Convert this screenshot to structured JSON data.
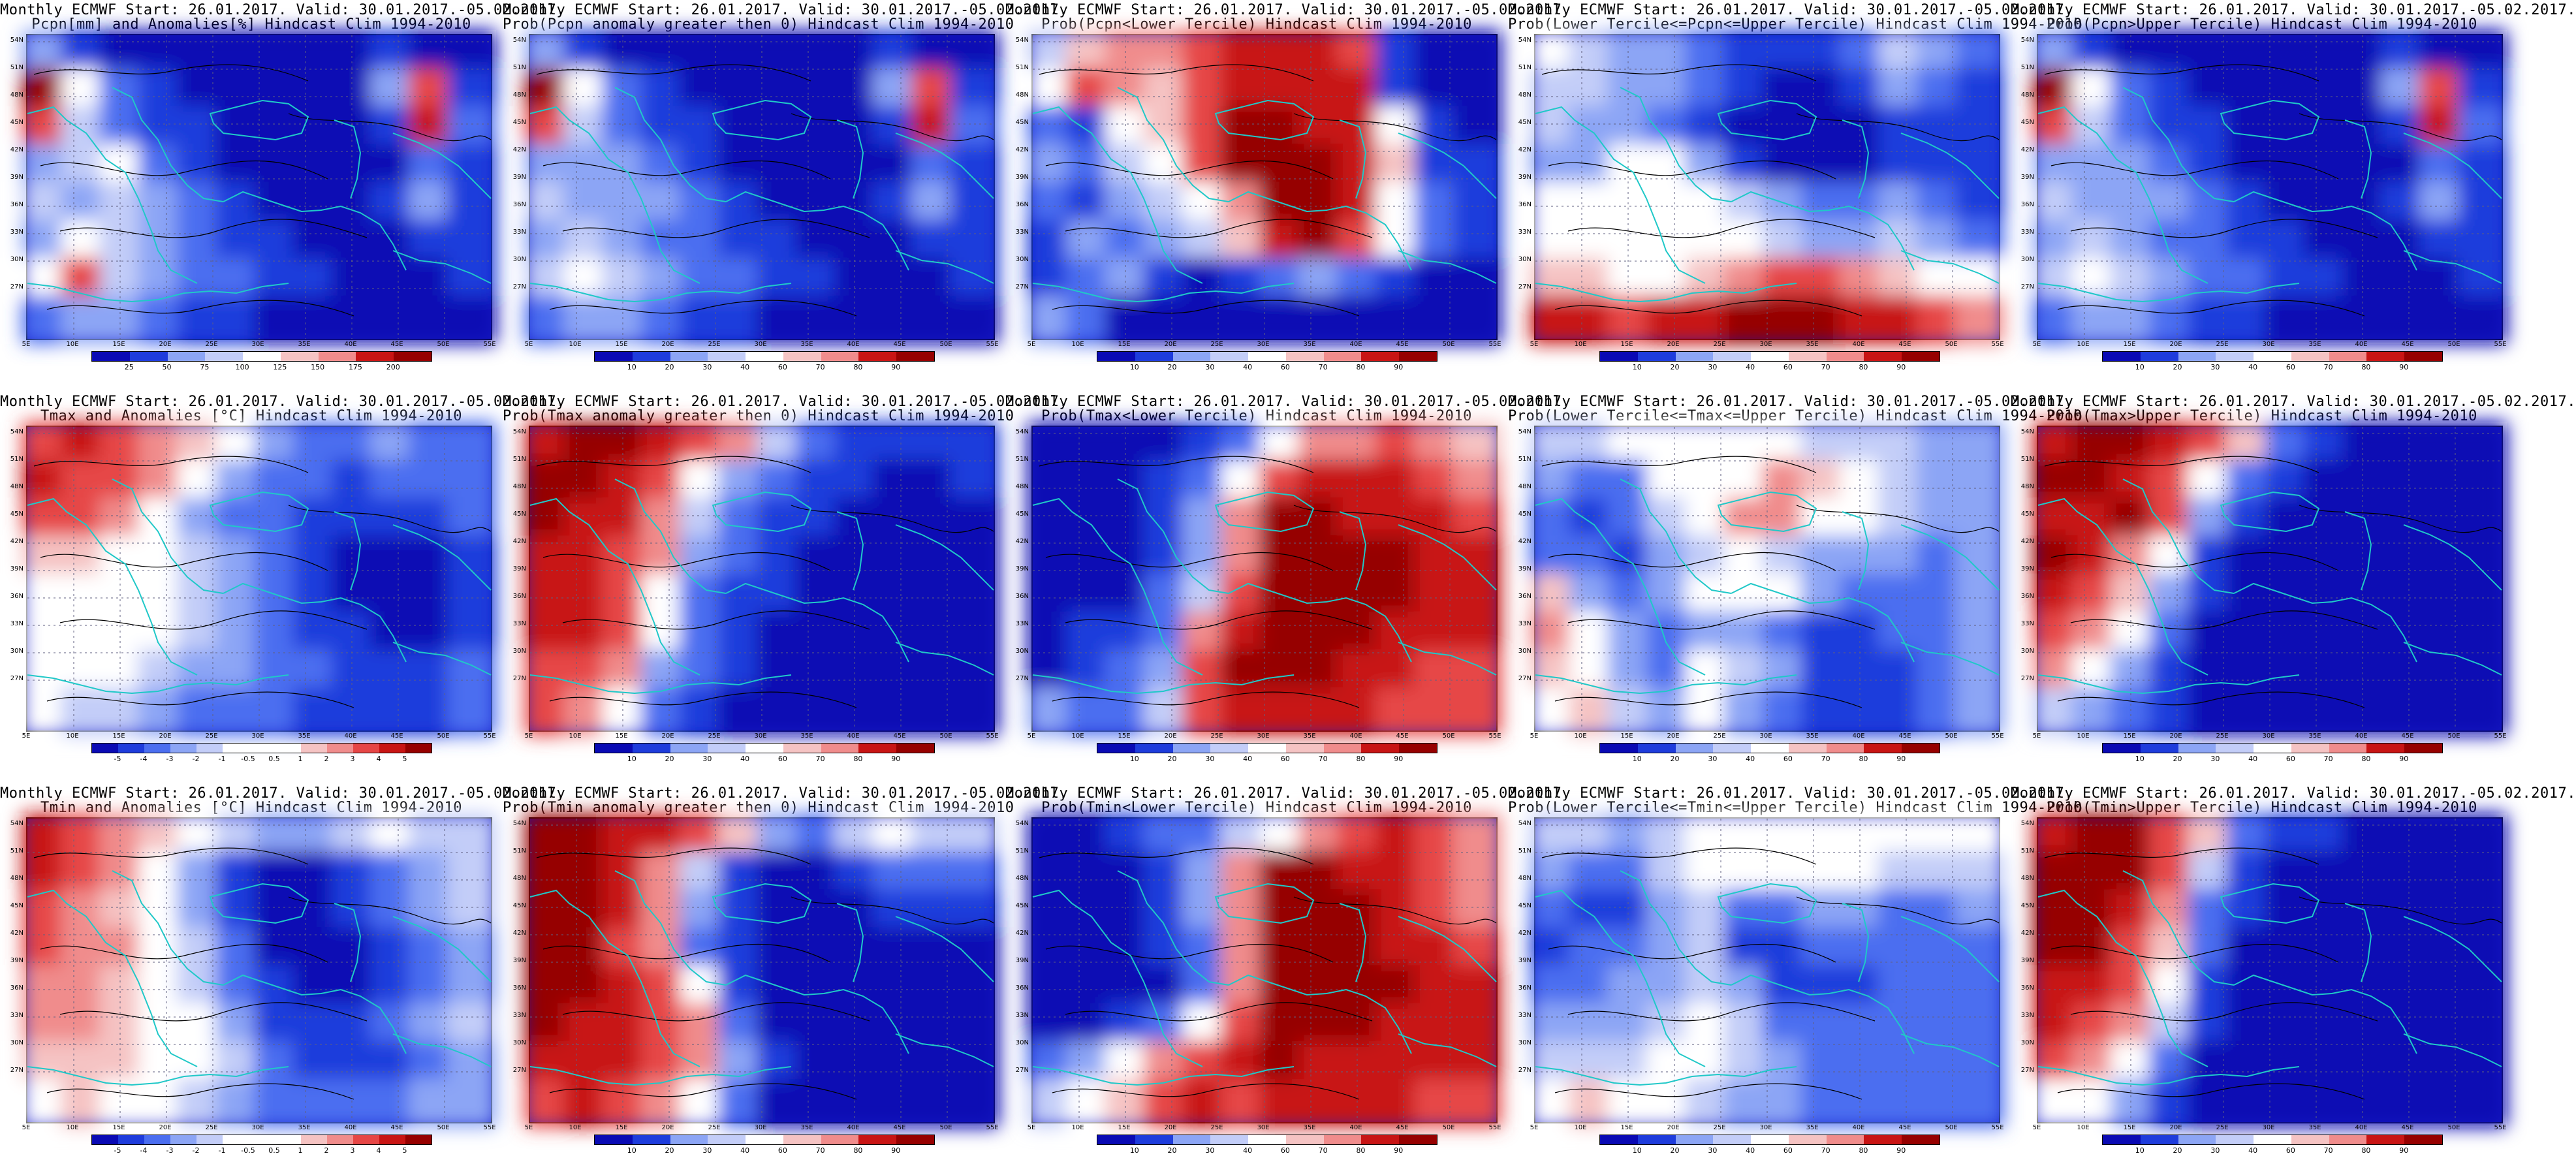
{
  "panels": [
    {
      "line1": "Monthly ECMWF Start: 26.01.2017. Valid: 30.01.2017.-05.02.2017.",
      "line2": "Pcpn[mm] and Anomalies[%] Hindcast Clim 1994-2010",
      "scale": "pcpn_anom",
      "labels": [
        "25",
        "50",
        "75",
        "100",
        "125",
        "150",
        "175",
        "200"
      ]
    },
    {
      "line1": "Monthly ECMWF Start: 26.01.2017. Valid: 30.01.2017.-05.02.2017.",
      "line2": "Prob(Pcpn anomaly greater then 0) Hindcast Clim 1994-2010",
      "scale": "prob",
      "labels": [
        "10",
        "20",
        "30",
        "40",
        "60",
        "70",
        "80",
        "90"
      ]
    },
    {
      "line1": "Monthly ECMWF Start: 26.01.2017. Valid: 30.01.2017.-05.02.2017.",
      "line2": "Prob(Pcpn<Lower Tercile) Hindcast Clim 1994-2010",
      "scale": "prob",
      "labels": [
        "10",
        "20",
        "30",
        "40",
        "60",
        "70",
        "80",
        "90"
      ]
    },
    {
      "line1": "Monthly ECMWF Start: 26.01.2017. Valid: 30.01.2017.-05.02.2017.",
      "line2": "Prob(Lower Tercile<=Pcpn<=Upper Tercile) Hindcast Clim 1994-2010",
      "scale": "prob",
      "labels": [
        "10",
        "20",
        "30",
        "40",
        "60",
        "70",
        "80",
        "90"
      ]
    },
    {
      "line1": "Monthly ECMWF Start: 26.01.2017. Valid: 30.01.2017.-05.02.2017.",
      "line2": "Prob(Pcpn>Upper Tercile) Hindcast Clim 1994-2010",
      "scale": "prob",
      "labels": [
        "10",
        "20",
        "30",
        "40",
        "60",
        "70",
        "80",
        "90"
      ]
    },
    {
      "line1": "Monthly ECMWF Start: 26.01.2017. Valid: 30.01.2017.-05.02.2017.",
      "line2": "Tmax and Anomalies [°C] Hindcast Clim 1994-2010",
      "scale": "temp_anom",
      "labels": [
        "-5",
        "-4",
        "-3",
        "-2",
        "-1",
        "-0.5",
        "0.5",
        "1",
        "2",
        "3",
        "4",
        "5"
      ]
    },
    {
      "line1": "Monthly ECMWF Start: 26.01.2017. Valid: 30.01.2017.-05.02.2017.",
      "line2": "Prob(Tmax anomaly greater then 0) Hindcast Clim 1994-2010",
      "scale": "prob",
      "labels": [
        "10",
        "20",
        "30",
        "40",
        "60",
        "70",
        "80",
        "90"
      ]
    },
    {
      "line1": "Monthly ECMWF Start: 26.01.2017. Valid: 30.01.2017.-05.02.2017.",
      "line2": "Prob(Tmax<Lower Tercile) Hindcast Clim 1994-2010",
      "scale": "prob",
      "labels": [
        "10",
        "20",
        "30",
        "40",
        "60",
        "70",
        "80",
        "90"
      ]
    },
    {
      "line1": "Monthly ECMWF Start: 26.01.2017. Valid: 30.01.2017.-05.02.2017.",
      "line2": "Prob(Lower Tercile<=Tmax<=Upper Tercile) Hindcast Clim 1994-2010",
      "scale": "prob",
      "labels": [
        "10",
        "20",
        "30",
        "40",
        "60",
        "70",
        "80",
        "90"
      ]
    },
    {
      "line1": "Monthly ECMWF Start: 26.01.2017. Valid: 30.01.2017.-05.02.2017.",
      "line2": "Prob(Tmax>Upper Tercile) Hindcast Clim 1994-2010",
      "scale": "prob",
      "labels": [
        "10",
        "20",
        "30",
        "40",
        "60",
        "70",
        "80",
        "90"
      ]
    },
    {
      "line1": "Monthly ECMWF Start: 26.01.2017. Valid: 30.01.2017.-05.02.2017.",
      "line2": "Tmin and Anomalies [°C] Hindcast Clim 1994-2010",
      "scale": "temp_anom",
      "labels": [
        "-5",
        "-4",
        "-3",
        "-2",
        "-1",
        "-0.5",
        "0.5",
        "1",
        "2",
        "3",
        "4",
        "5"
      ]
    },
    {
      "line1": "Monthly ECMWF Start: 26.01.2017. Valid: 30.01.2017.-05.02.2017.",
      "line2": "Prob(Tmin anomaly greater then 0) Hindcast Clim 1994-2010",
      "scale": "prob",
      "labels": [
        "10",
        "20",
        "30",
        "40",
        "60",
        "70",
        "80",
        "90"
      ]
    },
    {
      "line1": "Monthly ECMWF Start: 26.01.2017. Valid: 30.01.2017.-05.02.2017.",
      "line2": "Prob(Tmin<Lower Tercile) Hindcast Clim 1994-2010",
      "scale": "prob",
      "labels": [
        "10",
        "20",
        "30",
        "40",
        "60",
        "70",
        "80",
        "90"
      ]
    },
    {
      "line1": "Monthly ECMWF Start: 26.01.2017. Valid: 30.01.2017.-05.02.2017.",
      "line2": "Prob(Lower Tercile<=Tmin<=Upper Tercile) Hindcast Clim 1994-2010",
      "scale": "prob",
      "labels": [
        "10",
        "20",
        "30",
        "40",
        "60",
        "70",
        "80",
        "90"
      ]
    },
    {
      "line1": "Monthly ECMWF Start: 26.01.2017. Valid: 30.01.2017.-05.02.2017.",
      "line2": "Prob(Tmin>Upper Tercile) Hindcast Clim 1994-2010",
      "scale": "prob",
      "labels": [
        "10",
        "20",
        "30",
        "40",
        "60",
        "70",
        "80",
        "90"
      ]
    }
  ],
  "lat_labels": [
    "54N",
    "51N",
    "48N",
    "45N",
    "42N",
    "39N",
    "36N",
    "33N",
    "30N",
    "27N"
  ],
  "lon_labels": [
    "5E",
    "10E",
    "15E",
    "20E",
    "25E",
    "30E",
    "35E",
    "40E",
    "45E",
    "50E",
    "55E"
  ],
  "colors": {
    "scale": [
      "#0a0ab4",
      "#1e3cdc",
      "#4b6ef0",
      "#8ca5f5",
      "#c3cdf8",
      "#ffffff",
      "#ffffff",
      "#f5c3c3",
      "#f08c8c",
      "#e64646",
      "#c81414",
      "#960000"
    ],
    "coastline": "#20c8c8",
    "contour": "#000000"
  }
}
